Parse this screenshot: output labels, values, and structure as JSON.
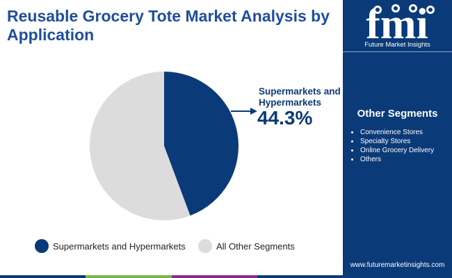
{
  "title": "Reusable Grocery Tote Market Analysis by Application",
  "brand": {
    "logo_text": "fmi",
    "name": "Future Market Insights",
    "url": "www.futuremarketinsights.com"
  },
  "callout": {
    "label": "Supermarkets and Hypermarkets",
    "value": "44.3%"
  },
  "other_segments": {
    "title": "Other Segments",
    "items": [
      "Convenience Stores",
      "Specialty Stores",
      "Online Grocery Delivery",
      "Others"
    ]
  },
  "chart_data": {
    "type": "pie",
    "slices": [
      {
        "label": "Supermarkets and Hypermarkets",
        "value": 44.3,
        "color": "#0b3a78"
      },
      {
        "label": "All Other Segments",
        "value": 55.7,
        "color": "#dcdcdc"
      }
    ],
    "legend_position": "bottom"
  },
  "colors": {
    "primary": "#0b3a78",
    "title": "#1f4e9c",
    "bottom_bar": [
      "#0b3a78",
      "#7ab648",
      "#8e2a8c",
      "#0b3a78"
    ]
  }
}
